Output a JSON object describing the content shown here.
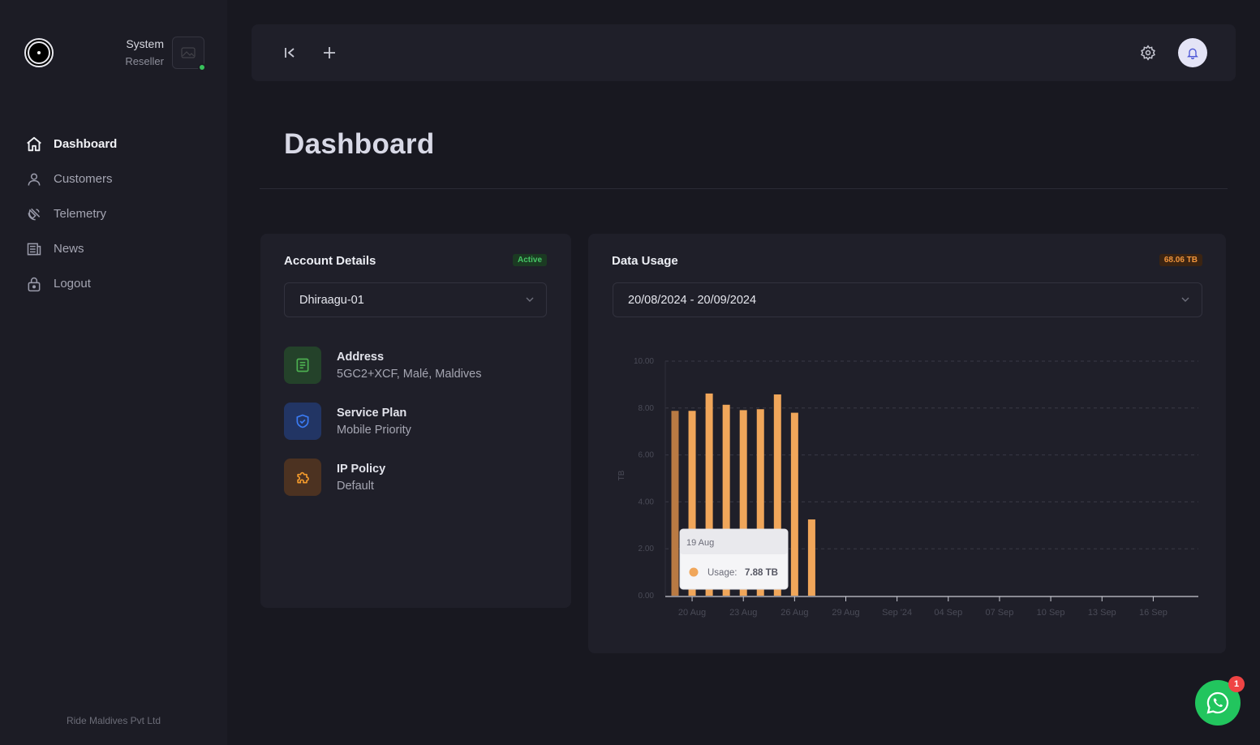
{
  "sidebar": {
    "user_name": "System",
    "user_role": "Reseller",
    "nav": [
      {
        "label": "Dashboard",
        "icon": "home-icon"
      },
      {
        "label": "Customers",
        "icon": "user-icon"
      },
      {
        "label": "Telemetry",
        "icon": "satellite-icon"
      },
      {
        "label": "News",
        "icon": "newspaper-icon"
      },
      {
        "label": "Logout",
        "icon": "lock-icon"
      }
    ],
    "company": "Ride Maldives Pvt Ltd"
  },
  "page": {
    "title": "Dashboard"
  },
  "account": {
    "title": "Account Details",
    "status": "Active",
    "selected_account": "Dhiraagu-01",
    "details": [
      {
        "label": "Address",
        "value": "5GC2+XCF, Malé, Maldives",
        "icon": "document-icon",
        "color": "#4caf50"
      },
      {
        "label": "Service Plan",
        "value": "Mobile Priority",
        "icon": "shield-check-icon",
        "color": "#3b6cf0"
      },
      {
        "label": "IP Policy",
        "value": "Default",
        "icon": "puzzle-icon",
        "color": "#f39a2c"
      }
    ]
  },
  "usage": {
    "title": "Data Usage",
    "total": "68.06 TB",
    "date_range": "20/08/2024 - 20/09/2024"
  },
  "chart_data": {
    "type": "bar",
    "ylabel": "TB",
    "ylim": [
      0,
      10
    ],
    "y_ticks": [
      "0.00",
      "2.00",
      "4.00",
      "6.00",
      "8.00",
      "10.00"
    ],
    "x_ticks": [
      "20 Aug",
      "23 Aug",
      "26 Aug",
      "29 Aug",
      "Sep '24",
      "04 Sep",
      "07 Sep",
      "10 Sep",
      "13 Sep",
      "16 Sep"
    ],
    "categories": [
      "19 Aug",
      "20 Aug",
      "21 Aug",
      "22 Aug",
      "23 Aug",
      "24 Aug",
      "25 Aug",
      "26 Aug",
      "27 Aug"
    ],
    "values": [
      7.88,
      7.88,
      8.62,
      8.14,
      7.91,
      7.95,
      8.58,
      7.8,
      3.25
    ],
    "grid": true,
    "colors": {
      "bar": "#f0a65a",
      "bar_hover": "#b97a43"
    },
    "tooltip": {
      "date": "19 Aug",
      "series": "Usage:",
      "value": "7.88 TB"
    }
  },
  "notifications": {
    "whatsapp_count": "1"
  }
}
